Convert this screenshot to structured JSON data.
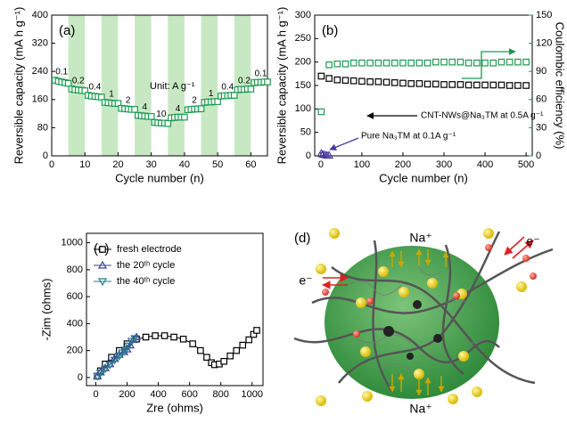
{
  "chart_data": [
    {
      "type": "scatter",
      "panel_label": "(a)",
      "xlabel": "Cycle number (n)",
      "ylabel": "Reversible capacity (mA h g⁻¹)",
      "x": [
        1,
        2,
        3,
        4,
        5,
        6,
        7,
        8,
        9,
        10,
        11,
        12,
        13,
        14,
        15,
        16,
        17,
        18,
        19,
        20,
        21,
        22,
        23,
        24,
        25,
        26,
        27,
        28,
        29,
        30,
        31,
        32,
        33,
        34,
        35,
        36,
        37,
        38,
        39,
        40,
        41,
        42,
        43,
        44,
        45,
        46,
        47,
        48,
        49,
        50,
        51,
        52,
        53,
        54,
        55,
        56,
        57,
        58,
        59,
        60,
        61,
        62,
        63,
        64,
        65
      ],
      "values": [
        215,
        212,
        210,
        208,
        206,
        190,
        188,
        187,
        186,
        185,
        172,
        170,
        169,
        168,
        167,
        152,
        151,
        150,
        149,
        149,
        135,
        134,
        133,
        132,
        132,
        115,
        114,
        113,
        112,
        112,
        95,
        94,
        93,
        93,
        92,
        108,
        109,
        110,
        110,
        110,
        131,
        132,
        133,
        133,
        134,
        152,
        153,
        153,
        154,
        154,
        170,
        171,
        171,
        172,
        172,
        188,
        189,
        189,
        190,
        190,
        208,
        209,
        209,
        210,
        210
      ],
      "color": "#1a9a50",
      "marker": "square",
      "xlim": [
        0,
        65
      ],
      "xticks": [
        0,
        10,
        20,
        30,
        40,
        50,
        60
      ],
      "ylim": [
        0,
        400
      ],
      "yticks": [
        0,
        80,
        160,
        240,
        320,
        400
      ],
      "shaded_ranges": [
        [
          5,
          10
        ],
        [
          15,
          20
        ],
        [
          25,
          30
        ],
        [
          35,
          40
        ],
        [
          45,
          50
        ],
        [
          55,
          60
        ]
      ],
      "shade_color": "#c8e8c4",
      "rate_labels": [
        "0.1",
        "0.2",
        "0.4",
        "1",
        "2",
        "4",
        "10",
        "4",
        "2",
        "1",
        "0.4",
        "0.2",
        "0.1"
      ],
      "unit_label": "Unit: A g⁻¹"
    },
    {
      "type": "scatter",
      "panel_label": "(b)",
      "xlabel": "Cycle number (n)",
      "ylabel": "Reversible capacity (mA h g⁻¹)",
      "y2label": "Coulombic efficiency (%)",
      "y2color": "#1a9a50",
      "xlim": [
        -15,
        515
      ],
      "xticks": [
        0,
        100,
        200,
        300,
        400,
        500
      ],
      "ylim": [
        0,
        300
      ],
      "yticks": [
        0,
        50,
        100,
        150,
        200,
        250,
        300
      ],
      "y2lim": [
        0,
        150
      ],
      "y2ticks": [
        0,
        30,
        60,
        90,
        120,
        150
      ],
      "series": [
        {
          "color": "#000000",
          "marker": "square",
          "x": [
            1,
            20,
            40,
            60,
            80,
            100,
            120,
            140,
            160,
            180,
            200,
            220,
            240,
            260,
            280,
            300,
            320,
            340,
            360,
            380,
            400,
            420,
            440,
            460,
            480,
            500
          ],
          "values": [
            170,
            165,
            162,
            161,
            160,
            159,
            158,
            158,
            157,
            156,
            155,
            154,
            154,
            153,
            153,
            152,
            152,
            152,
            151,
            151,
            151,
            151,
            151,
            150,
            150,
            150
          ]
        },
        {
          "color": "#1a9a50",
          "marker": "square",
          "axis": "y2",
          "x": [
            1,
            20,
            40,
            60,
            80,
            100,
            120,
            140,
            160,
            180,
            200,
            220,
            240,
            260,
            280,
            300,
            320,
            340,
            360,
            380,
            400,
            420,
            440,
            460,
            480,
            500
          ],
          "values": [
            47,
            97,
            98,
            98,
            99,
            99,
            99,
            99,
            99,
            99,
            99,
            99,
            99,
            99,
            100,
            100,
            100,
            100,
            99,
            99,
            99,
            99,
            100,
            100,
            100,
            100
          ]
        },
        {
          "color": "#4b3a9e",
          "marker": "triangle-up",
          "x": [
            1,
            5,
            10,
            15,
            20
          ],
          "values": [
            5,
            3,
            2,
            1,
            1
          ]
        }
      ],
      "annotations": [
        "CNT-NWs@Na₃TM at 0.5A g⁻¹",
        "Pure Na₃TM at 0.1A g⁻¹"
      ]
    },
    {
      "type": "line",
      "panel_label": "(c)",
      "xlabel": "Zre (ohms)",
      "ylabel": "-Zim (ohms)",
      "xlim": [
        -60,
        1070
      ],
      "xticks": [
        0,
        200,
        400,
        600,
        800,
        1000
      ],
      "ylim": [
        -60,
        1070
      ],
      "yticks": [
        0,
        200,
        400,
        600,
        800,
        1000
      ],
      "legend": "upper left",
      "series": [
        {
          "name": "fresh electrode",
          "color": "#000000",
          "marker": "square",
          "x": [
            10,
            30,
            60,
            100,
            150,
            200,
            260,
            320,
            380,
            440,
            500,
            560,
            620,
            670,
            710,
            740,
            760,
            790,
            820,
            860,
            900,
            940,
            980,
            1010,
            1030
          ],
          "values": [
            10,
            50,
            100,
            150,
            200,
            250,
            285,
            300,
            310,
            310,
            300,
            285,
            250,
            200,
            150,
            110,
            95,
            100,
            120,
            160,
            200,
            240,
            280,
            320,
            350
          ]
        },
        {
          "name": "the 20ᵗʰ cycle",
          "color": "#3a3f9a",
          "marker": "triangle-up",
          "x": [
            10,
            30,
            60,
            90,
            120,
            150,
            180,
            200,
            220,
            240,
            260
          ],
          "values": [
            10,
            40,
            70,
            100,
            140,
            170,
            190,
            210,
            240,
            280,
            300
          ]
        },
        {
          "name": "the 40ᵗʰ cycle",
          "color": "#2a7a8a",
          "marker": "triangle-down",
          "x": [
            10,
            30,
            60,
            90,
            120,
            150,
            170,
            190,
            210,
            230,
            250
          ],
          "values": [
            10,
            35,
            65,
            95,
            130,
            160,
            185,
            205,
            235,
            270,
            290
          ]
        }
      ]
    }
  ],
  "diagram": {
    "panel_label": "(d)",
    "ion_top": "Na⁺",
    "ion_bottom": "Na⁺",
    "electron_left": "e⁻",
    "electron_right": "e⁻"
  }
}
